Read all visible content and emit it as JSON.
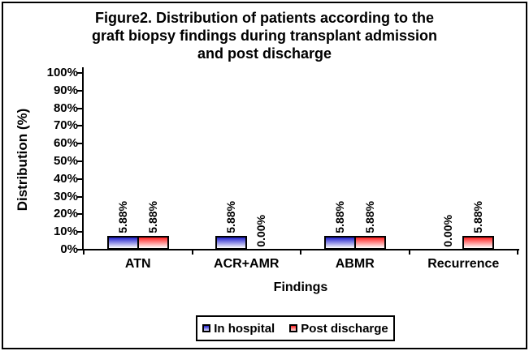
{
  "figure": {
    "title_lines": [
      "Figure2. Distribution of patients according to the",
      "graft biopsy findings during transplant admission",
      "and post discharge"
    ]
  },
  "chart_data": {
    "type": "bar",
    "title": "Figure2. Distribution of patients according to the graft biopsy findings during transplant admission and post discharge",
    "categories": [
      "ATN",
      "ACR+AMR",
      "ABMR",
      "Recurrence"
    ],
    "series": [
      {
        "name": "In hospital",
        "color": "#2121cc",
        "values": [
          5.88,
          5.88,
          5.88,
          0
        ],
        "labels": [
          "5.88%",
          "5.88%",
          "5.88%",
          "0.00%"
        ]
      },
      {
        "name": "Post discharge",
        "color": "#ff2222",
        "values": [
          5.88,
          0,
          5.88,
          5.88
        ],
        "labels": [
          "5.88%",
          "0.00%",
          "5.88%",
          "5.88%"
        ]
      }
    ],
    "xlabel": "Findings",
    "ylabel": "Distribution (%)",
    "ylim": [
      0,
      100
    ],
    "ytick_labels": [
      "0%",
      "10%",
      "20%",
      "30%",
      "40%",
      "50%",
      "60%",
      "70%",
      "80%",
      "90%",
      "100%"
    ],
    "grid": false,
    "legend_position": "bottom",
    "colors": {
      "axis": "#000000",
      "background": "#ffffff",
      "bar_gradient_to": "#ffffff"
    }
  }
}
